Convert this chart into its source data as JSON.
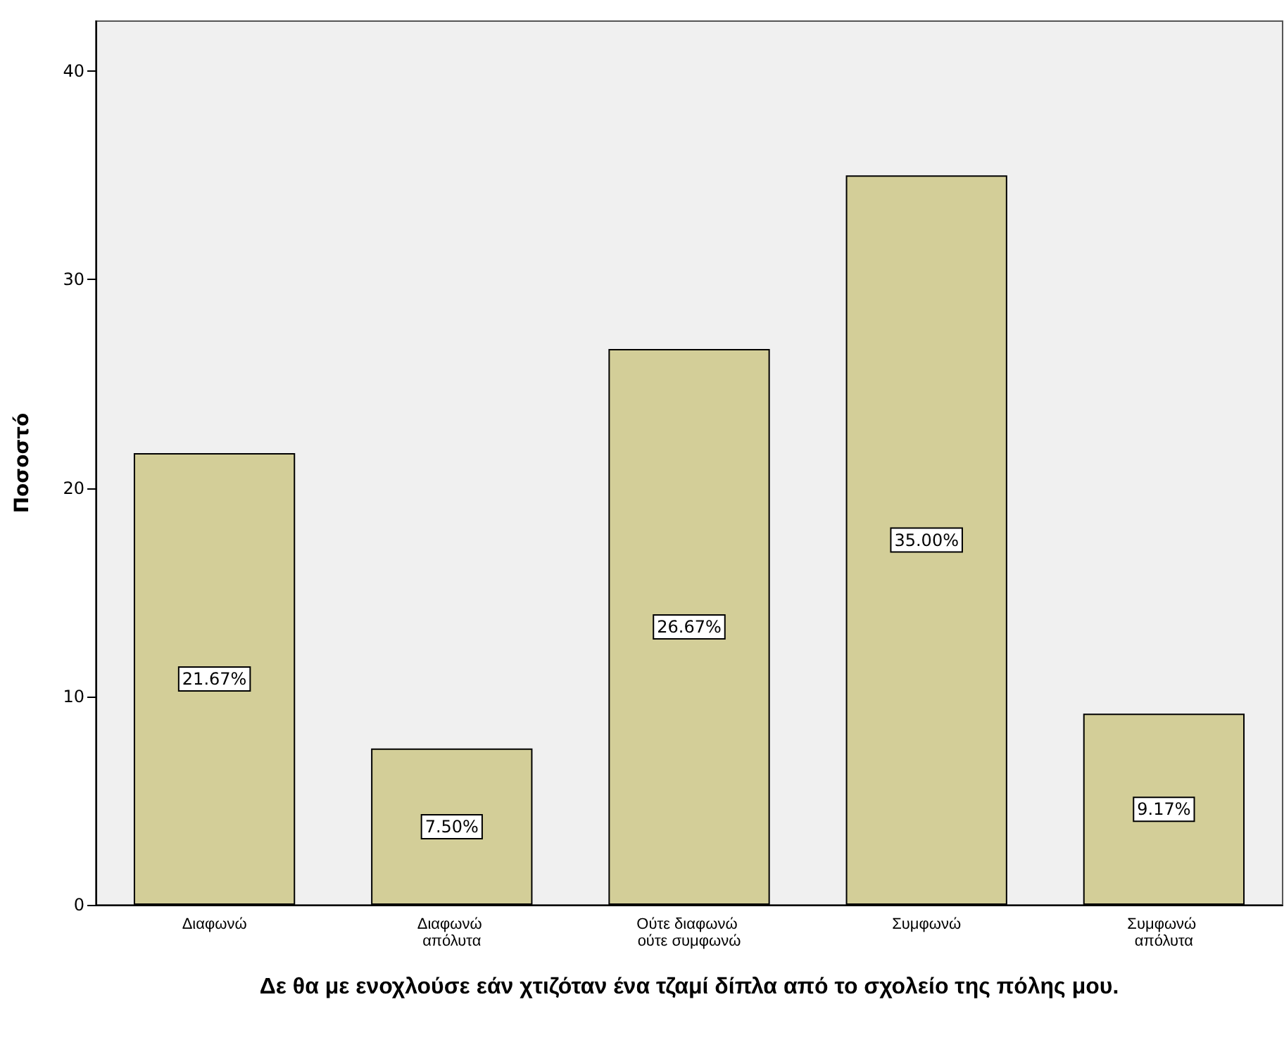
{
  "chart_data": {
    "type": "bar",
    "xlabel": "Δε θα με ενοχλούσε εάν χτιζόταν ένα τζαμί δίπλα από το σχολείο της πόλης μου.",
    "ylabel": "Ποσοστό",
    "categories": [
      "Διαφωνώ",
      "Διαφωνώ απόλυτα",
      "Ούτε διαφωνώ ούτε συμφωνώ",
      "Συμφωνώ",
      "Συμφωνώ απόλυτα"
    ],
    "values": [
      21.67,
      7.5,
      26.67,
      35.0,
      9.17
    ],
    "value_labels": [
      "21.67%",
      "7.50%",
      "26.67%",
      "35.00%",
      "9.17%"
    ],
    "color": "#d3ce98",
    "ylim": [
      0,
      42.4
    ],
    "yticks": [
      0,
      10,
      20,
      30,
      40
    ]
  }
}
